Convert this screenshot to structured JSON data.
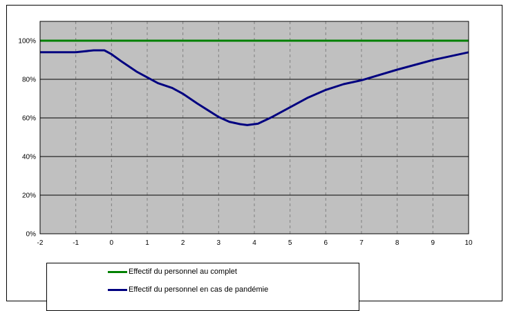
{
  "chart_data": {
    "type": "line",
    "title": "",
    "xlabel": "",
    "ylabel": "",
    "xlim": [
      -2,
      10
    ],
    "ylim": [
      0,
      1.1
    ],
    "x_ticks": [
      "-2",
      "-1",
      "0",
      "1",
      "2",
      "3",
      "4",
      "5",
      "6",
      "7",
      "8",
      "9",
      "10"
    ],
    "y_ticks": [
      "0%",
      "20%",
      "40%",
      "60%",
      "80%",
      "100%"
    ],
    "grid": {
      "horizontal": "solid",
      "vertical": "dashed"
    },
    "plot_background": "#c0c0c0",
    "legend_position": "bottom",
    "series": [
      {
        "name": "Effectif du personnel au complet",
        "color": "#008000",
        "x": [
          -2,
          10
        ],
        "y": [
          1.0,
          1.0
        ]
      },
      {
        "name": "Effectif du personnel en cas de pandémie",
        "color": "#000080",
        "x": [
          -2,
          -1,
          -0.5,
          -0.2,
          0,
          0.3,
          0.7,
          1,
          1.3,
          1.7,
          2,
          2.4,
          2.7,
          3,
          3.3,
          3.6,
          3.8,
          4.1,
          4.5,
          5,
          5.5,
          6,
          6.5,
          7,
          8,
          9,
          10
        ],
        "y": [
          0.94,
          0.94,
          0.95,
          0.95,
          0.93,
          0.89,
          0.84,
          0.81,
          0.78,
          0.755,
          0.725,
          0.675,
          0.64,
          0.605,
          0.58,
          0.568,
          0.563,
          0.57,
          0.605,
          0.655,
          0.705,
          0.745,
          0.775,
          0.795,
          0.85,
          0.9,
          0.94
        ]
      }
    ]
  }
}
